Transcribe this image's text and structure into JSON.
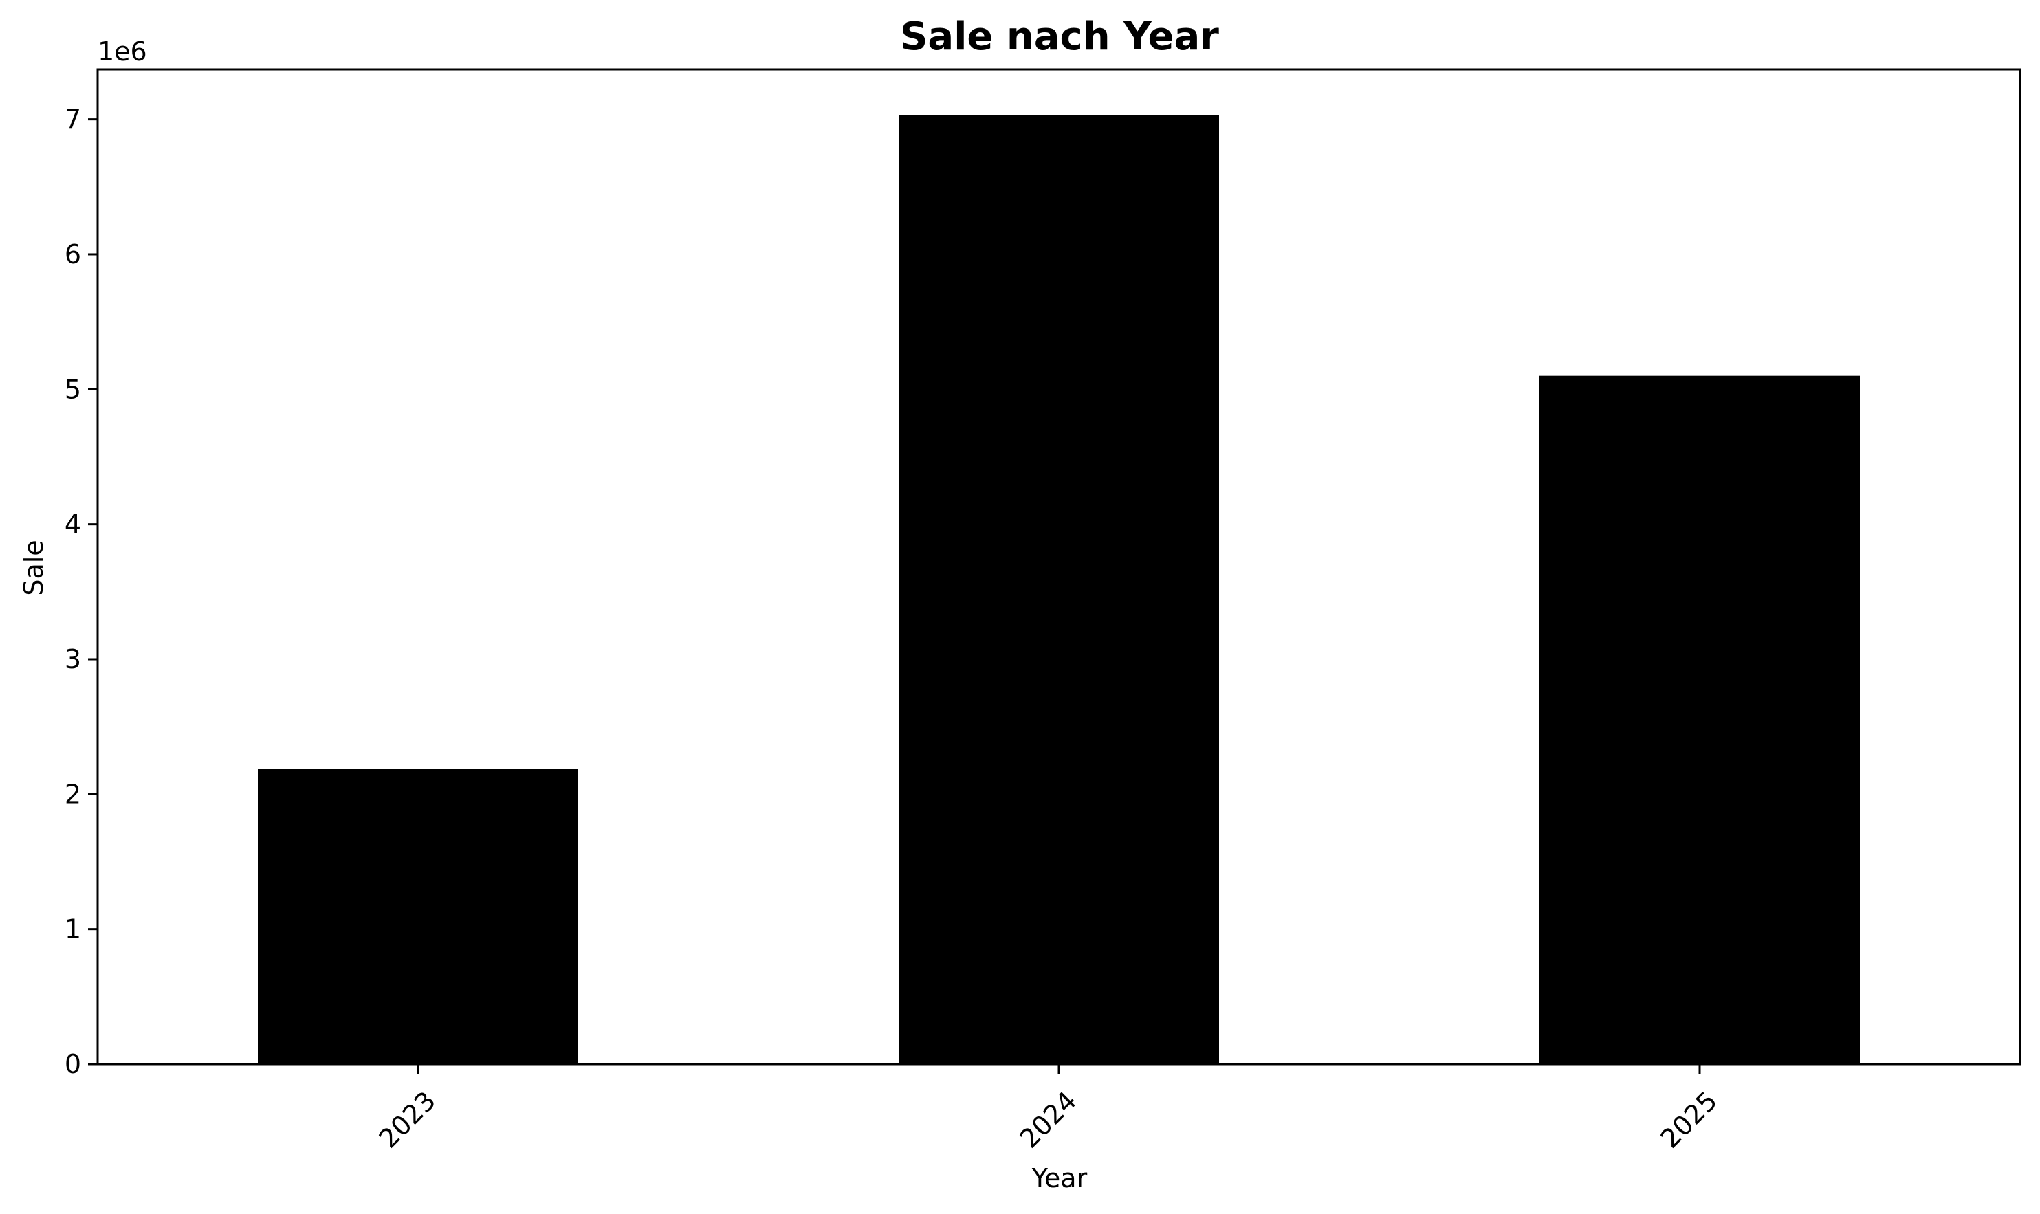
{
  "chart_data": {
    "type": "bar",
    "title": "Sale nach Year",
    "xlabel": "Year",
    "ylabel": "Sale",
    "y_scale_label": "1e6",
    "y_multiplier": 1000000,
    "categories": [
      "2023",
      "2024",
      "2025"
    ],
    "values": [
      2190000,
      7030000,
      5100000
    ],
    "ylim": [
      0,
      7370000
    ],
    "yticks": [
      0,
      1,
      2,
      3,
      4,
      5,
      6,
      7
    ],
    "grid": false,
    "legend": "none",
    "bar_color": "#000000",
    "frame_color": "#000000"
  }
}
